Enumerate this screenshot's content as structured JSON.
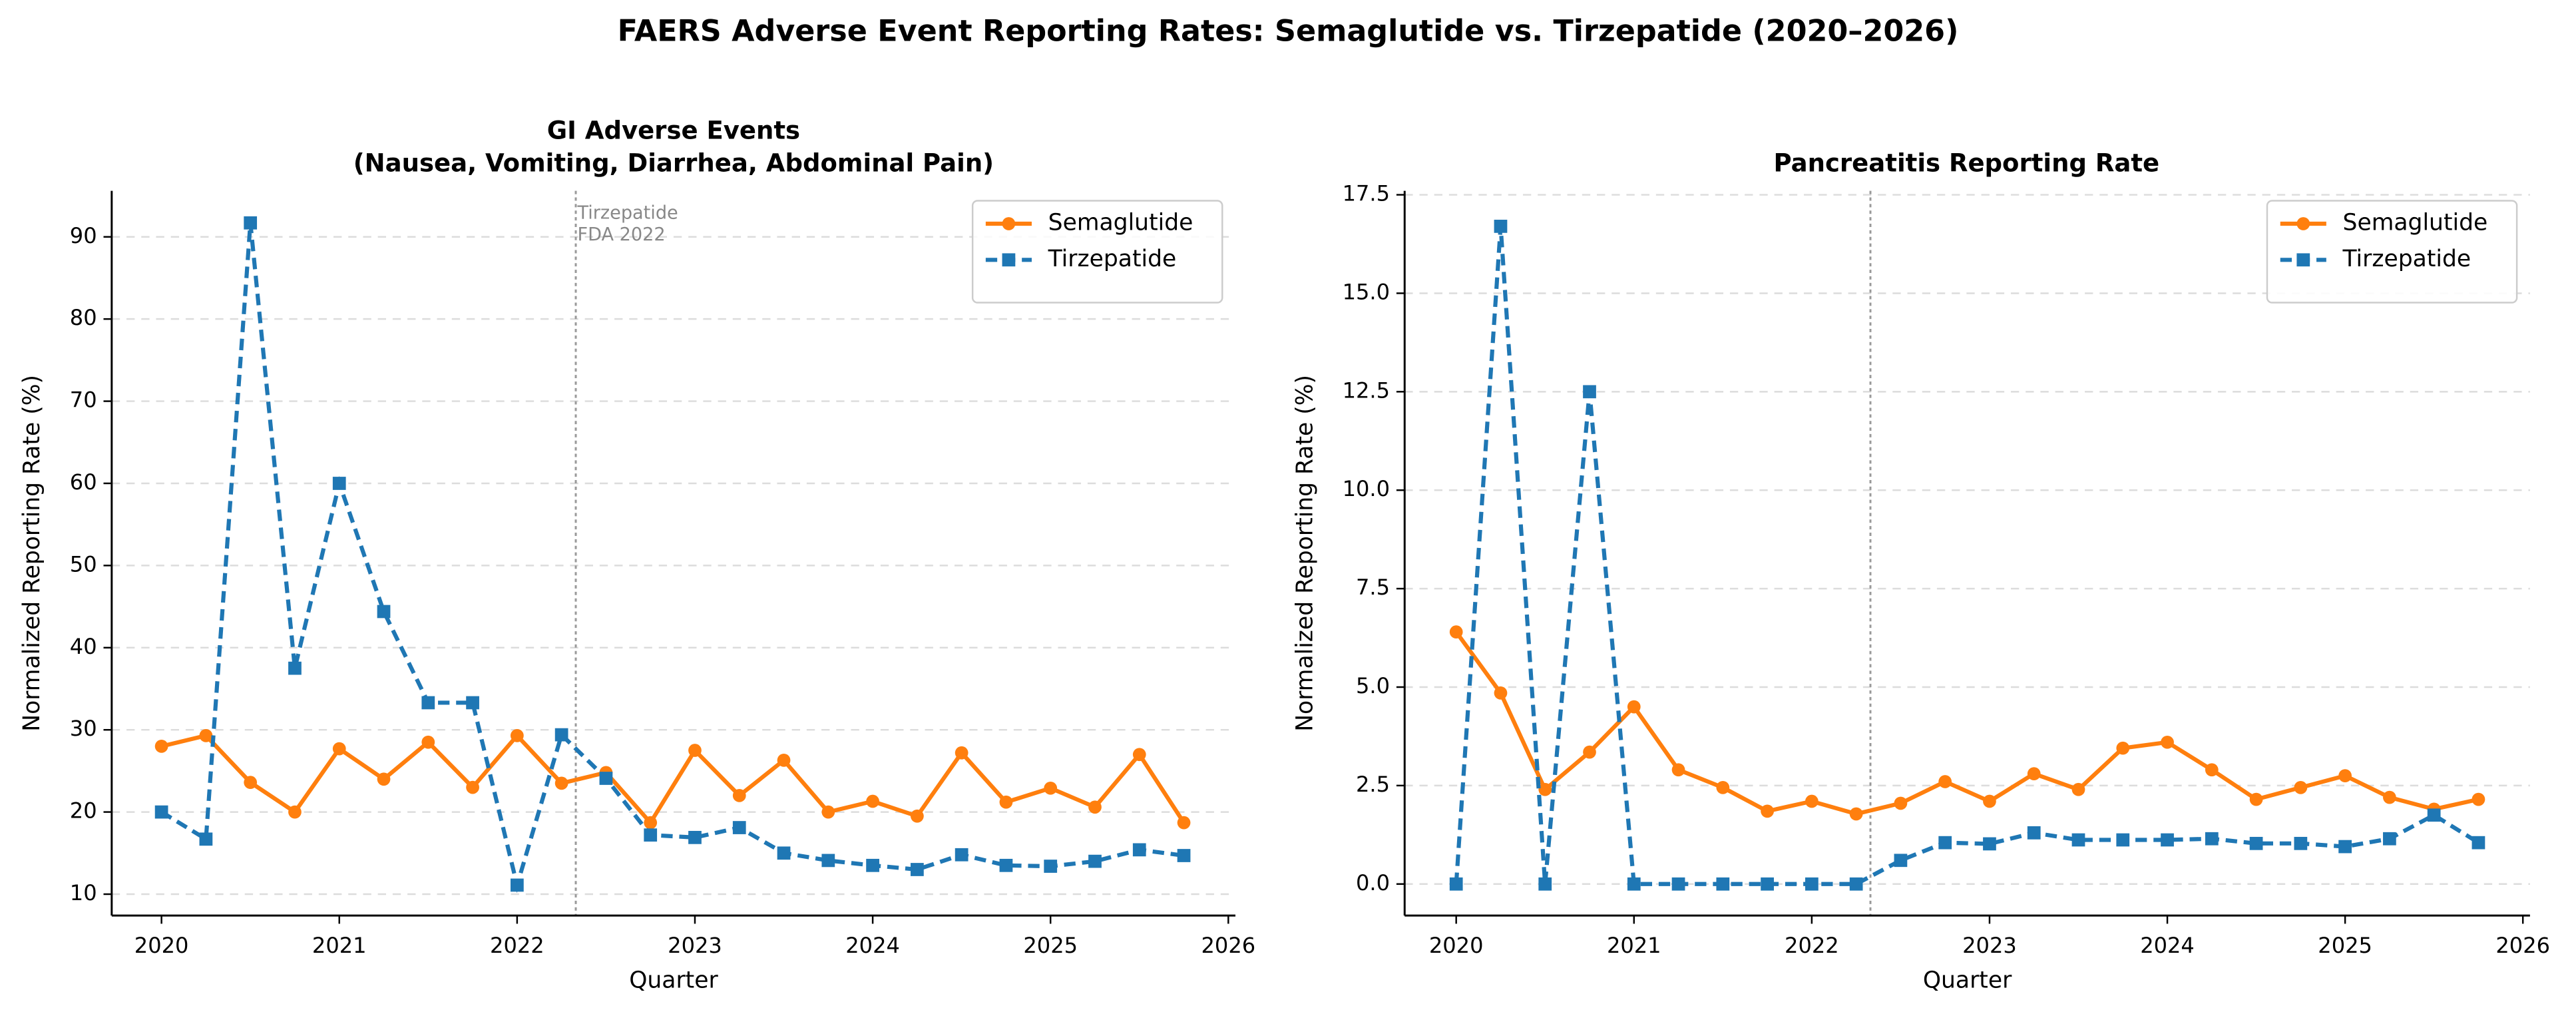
{
  "title": "FAERS Adverse Event Reporting Rates: Semaglutide vs. Tirzepatide (2020–2026)",
  "chart_data": [
    {
      "type": "line",
      "title": [
        "GI Adverse Events",
        "(Nausea, Vomiting, Diarrhea, Abdominal Pain)"
      ],
      "xlabel": "Quarter",
      "ylabel": "Normalized Reporting Rate (%)",
      "x": [
        2020,
        2020.25,
        2020.5,
        2020.75,
        2021,
        2021.25,
        2021.5,
        2021.75,
        2022,
        2022.25,
        2022.5,
        2022.75,
        2023,
        2023.25,
        2023.5,
        2023.75,
        2024,
        2024.25,
        2024.5,
        2024.75,
        2025,
        2025.25,
        2025.5,
        2025.75
      ],
      "series": [
        {
          "name": "Semaglutide",
          "color": "#ff7f0e",
          "linestyle": "solid",
          "marker": "circle",
          "values": [
            28,
            29.3,
            23.6,
            20,
            27.7,
            24,
            28.5,
            23,
            29.3,
            23.5,
            24.8,
            18.7,
            27.5,
            22,
            26.3,
            20,
            21.3,
            19.5,
            27.2,
            21.2,
            22.9,
            20.6,
            27,
            18.7
          ]
        },
        {
          "name": "Tirzepatide",
          "color": "#1f77b4",
          "linestyle": "dashed",
          "marker": "square",
          "values": [
            20,
            16.7,
            91.7,
            37.5,
            60,
            44.4,
            33.3,
            33.3,
            11.1,
            29.4,
            24.1,
            17.2,
            16.9,
            18.1,
            15,
            14.1,
            13.5,
            13,
            14.8,
            13.5,
            13.4,
            14,
            15.4,
            14.7
          ]
        }
      ],
      "xlim": [
        2019.72,
        2026.04
      ],
      "xticks": [
        2020,
        2021,
        2022,
        2023,
        2024,
        2025,
        2026
      ],
      "ylim": [
        7.4,
        95.6
      ],
      "yticks": [
        10,
        20,
        30,
        40,
        50,
        60,
        70,
        80,
        90
      ],
      "grid": true,
      "legend": "upper right",
      "vline": 2022.33,
      "annotation": [
        "Tirzepatide",
        "FDA 2022"
      ]
    },
    {
      "type": "line",
      "title": [
        "Pancreatitis Reporting Rate"
      ],
      "xlabel": "Quarter",
      "ylabel": "Normalized Reporting Rate (%)",
      "x": [
        2020,
        2020.25,
        2020.5,
        2020.75,
        2021,
        2021.25,
        2021.5,
        2021.75,
        2022,
        2022.25,
        2022.5,
        2022.75,
        2023,
        2023.25,
        2023.5,
        2023.75,
        2024,
        2024.25,
        2024.5,
        2024.75,
        2025,
        2025.25,
        2025.5,
        2025.75
      ],
      "series": [
        {
          "name": "Semaglutide",
          "color": "#ff7f0e",
          "linestyle": "solid",
          "marker": "circle",
          "values": [
            6.4,
            4.85,
            2.4,
            3.35,
            4.5,
            2.9,
            2.45,
            1.85,
            2.1,
            1.78,
            2.05,
            2.6,
            2.1,
            2.8,
            2.4,
            3.45,
            3.6,
            2.9,
            2.15,
            2.45,
            2.75,
            2.2,
            1.9,
            2.15
          ]
        },
        {
          "name": "Tirzepatide",
          "color": "#1f77b4",
          "linestyle": "dashed",
          "marker": "square",
          "values": [
            0,
            16.7,
            0,
            12.5,
            0,
            0,
            0,
            0,
            0,
            0,
            0.6,
            1.05,
            1.02,
            1.3,
            1.12,
            1.12,
            1.12,
            1.15,
            1.03,
            1.03,
            0.95,
            1.15,
            1.75,
            1.05
          ]
        }
      ],
      "xlim": [
        2019.71,
        2026.04
      ],
      "xticks": [
        2020,
        2021,
        2022,
        2023,
        2024,
        2025,
        2026
      ],
      "ylim": [
        -0.8,
        17.6
      ],
      "yticks": [
        {
          "value": 0,
          "label": "0.0"
        },
        2.5,
        {
          "value": 5,
          "label": "5.0"
        },
        7.5,
        {
          "value": 10,
          "label": "10.0"
        },
        12.5,
        {
          "value": 15,
          "label": "15.0"
        },
        17.5
      ],
      "grid": true,
      "legend": "upper right",
      "vline": 2022.33
    }
  ]
}
